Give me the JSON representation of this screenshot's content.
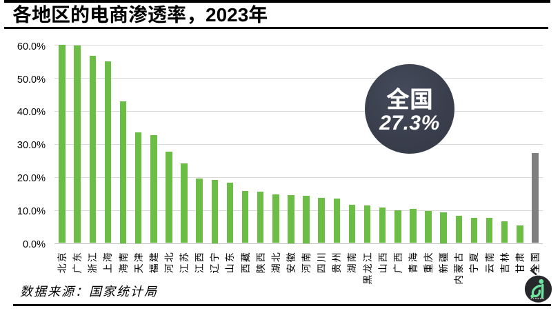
{
  "title": "各地区的电商渗透率，2023年",
  "source_note": "数据来源：国家统计局",
  "callout": {
    "label": "全国",
    "value": "27.3%"
  },
  "colors": {
    "bar": "#6cbd45",
    "national_bar": "#7f7f7f",
    "gridline": "#d9d9d9",
    "axis_line": "#c4c4c4",
    "callout_bg": "#3a3f4d",
    "callout_text": "#ffffff",
    "logo_bg": "#26282b",
    "logo_figure": "#6fe3a0"
  },
  "chart_data": {
    "type": "bar",
    "title": "各地区的电商渗透率，2023年",
    "xlabel": "",
    "ylabel": "",
    "unit": "%",
    "ylim": [
      0,
      60
    ],
    "y_ticks": [
      "0.0%",
      "10.0%",
      "20.0%",
      "30.0%",
      "40.0%",
      "50.0%",
      "60.0%"
    ],
    "grid": true,
    "legend": false,
    "categories": [
      "北京",
      "广东",
      "浙江",
      "上海",
      "海南",
      "天津",
      "福建",
      "河北",
      "江苏",
      "江西",
      "辽宁",
      "山东",
      "西藏",
      "陕西",
      "湖北",
      "安徽",
      "河南",
      "四川",
      "贵州",
      "湖南",
      "黑龙江",
      "山西",
      "广西",
      "青海",
      "重庆",
      "新疆",
      "内蒙古",
      "宁夏",
      "云南",
      "吉林",
      "甘肃",
      "全国"
    ],
    "values": [
      60.1,
      59.9,
      56.7,
      55.0,
      43.0,
      33.5,
      32.6,
      27.6,
      24.2,
      19.6,
      19.1,
      18.2,
      15.8,
      15.6,
      14.8,
      14.5,
      14.3,
      13.7,
      13.5,
      11.5,
      11.3,
      10.7,
      10.0,
      10.3,
      9.8,
      9.4,
      8.2,
      7.7,
      7.7,
      6.5,
      5.3,
      27.3
    ],
    "national_category": "全国",
    "national_value": 27.3
  }
}
